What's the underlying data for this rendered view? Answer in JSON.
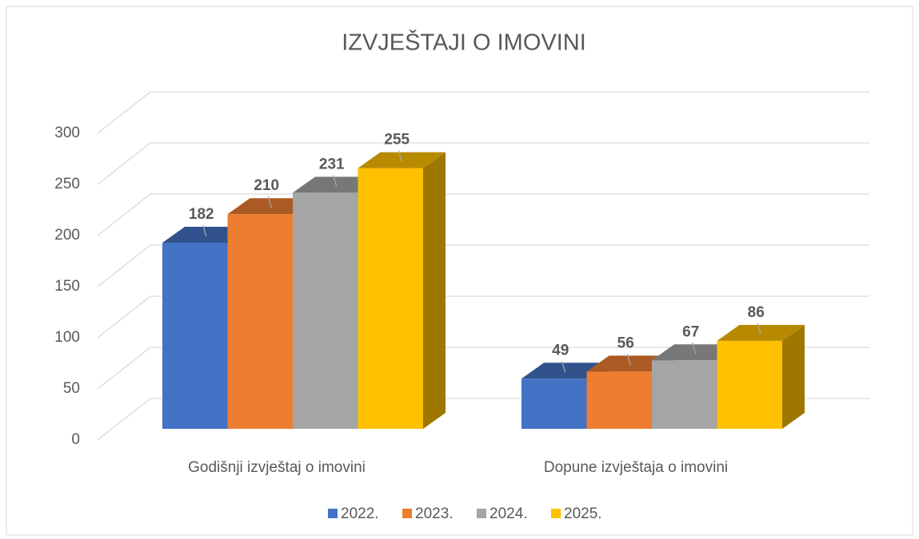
{
  "chart_data": {
    "type": "bar3d",
    "title": "IZVJEŠTAJI O IMOVINI",
    "categories": [
      "Godišnji izvještaj o imovini",
      "Dopune izvještaja o imovini"
    ],
    "series": [
      {
        "name": "2022.",
        "color": "#4472c4",
        "values": [
          182,
          49
        ]
      },
      {
        "name": "2023.",
        "color": "#ed7d31",
        "values": [
          210,
          56
        ]
      },
      {
        "name": "2024.",
        "color": "#a5a5a5",
        "values": [
          231,
          67
        ]
      },
      {
        "name": "2025.",
        "color": "#ffc000",
        "values": [
          255,
          86
        ]
      }
    ],
    "ylim": [
      0,
      300
    ],
    "yticks": [
      0,
      50,
      100,
      150,
      200,
      250,
      300
    ],
    "grid": true,
    "legend": "bottom"
  }
}
